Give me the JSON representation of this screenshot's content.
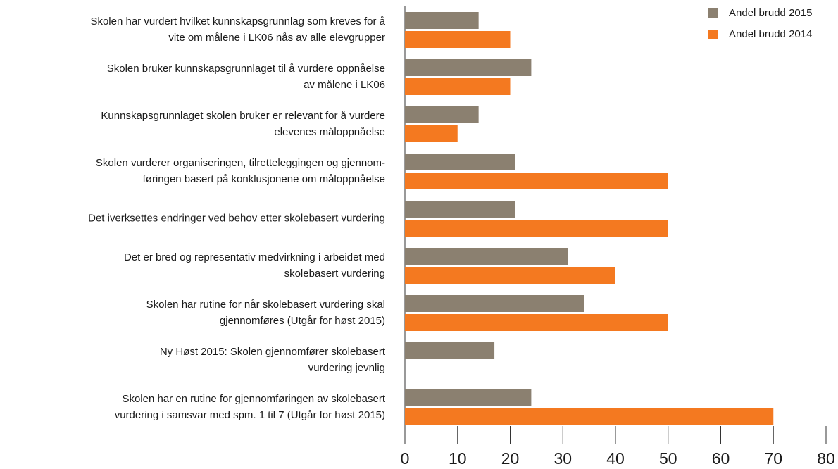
{
  "chart_data": {
    "type": "bar",
    "orientation": "horizontal",
    "categories": [
      "Skolen har vurdert hvilket kunnskapsgrunnlag som kreves for å\nvite om målene i LK06 nås av alle elevgrupper",
      "Skolen bruker kunnskapsgrunnlaget til å vurdere oppnåelse\nav målene i LK06",
      "Kunnskapsgrunnlaget skolen bruker er relevant for å vurdere\nelevenes måloppnåelse",
      "Skolen vurderer organiseringen, tilretteleggingen og gjennom-\nføringen basert på konklusjonene om måloppnåelse",
      "Det iverksettes endringer ved behov etter skolebasert vurdering",
      "Det er bred og representativ medvirkning i arbeidet med\nskolebasert vurdering",
      "Skolen har rutine for når skolebasert vurdering skal\ngjennomføres (Utgår for høst 2015)",
      "Ny Høst 2015: Skolen gjennomfører skolebasert\nvurdering jevnlig",
      "Skolen har en rutine for gjennomføringen av skolebasert\nvurdering i samsvar med spm. 1 til 7 (Utgår for høst 2015)"
    ],
    "series": [
      {
        "name": "Andel brudd 2015",
        "color": "#8b8070",
        "values": [
          14,
          24,
          14,
          21,
          21,
          31,
          34,
          17,
          24
        ]
      },
      {
        "name": "Andel brudd 2014",
        "color": "#f47920",
        "values": [
          20,
          20,
          10,
          50,
          50,
          40,
          50,
          null,
          70
        ]
      }
    ],
    "xlim": [
      0,
      80
    ],
    "xticks": [
      0,
      10,
      20,
      30,
      40,
      50,
      60,
      70,
      80
    ],
    "legend": "top-right"
  }
}
